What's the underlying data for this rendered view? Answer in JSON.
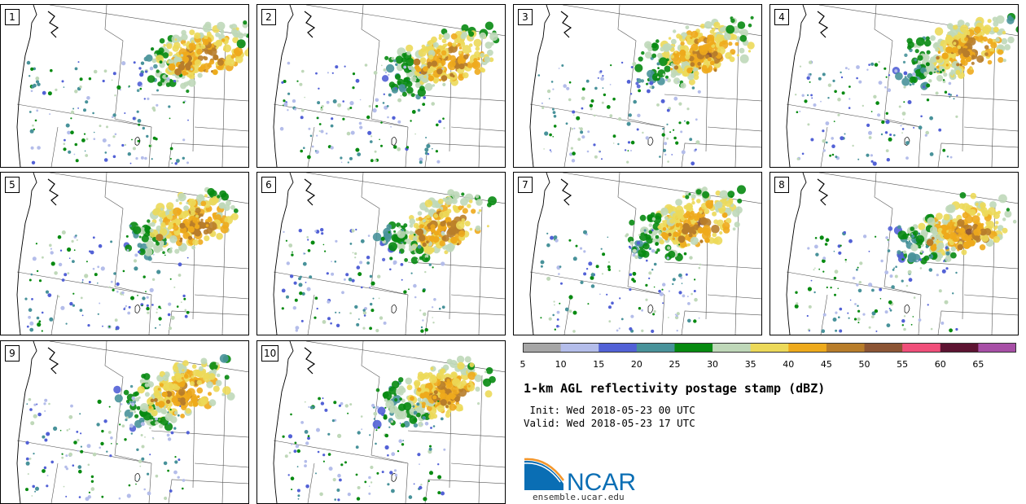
{
  "panels": [
    {
      "label": "1",
      "seed": 11,
      "core": [
        0.74,
        0.42
      ],
      "spread": 0.58
    },
    {
      "label": "2",
      "seed": 22,
      "core": [
        0.7,
        0.45
      ],
      "spread": 0.55
    },
    {
      "label": "3",
      "seed": 33,
      "core": [
        0.68,
        0.4
      ],
      "spread": 0.6
    },
    {
      "label": "4",
      "seed": 44,
      "core": [
        0.72,
        0.38
      ],
      "spread": 0.62
    },
    {
      "label": "5",
      "seed": 55,
      "core": [
        0.7,
        0.42
      ],
      "spread": 0.58
    },
    {
      "label": "6",
      "seed": 66,
      "core": [
        0.68,
        0.44
      ],
      "spread": 0.56
    },
    {
      "label": "7",
      "seed": 77,
      "core": [
        0.66,
        0.42
      ],
      "spread": 0.58
    },
    {
      "label": "8",
      "seed": 88,
      "core": [
        0.7,
        0.46
      ],
      "spread": 0.6
    },
    {
      "label": "9",
      "seed": 99,
      "core": [
        0.66,
        0.42
      ],
      "spread": 0.57
    },
    {
      "label": "10",
      "seed": 110,
      "core": [
        0.68,
        0.42
      ],
      "spread": 0.57
    }
  ],
  "colorbar": {
    "colors": [
      "#a6a6a6",
      "#b4bdea",
      "#5261d6",
      "#48929a",
      "#078a11",
      "#bfd8b9",
      "#ecd959",
      "#eeaa1c",
      "#b87d2a",
      "#8c5535",
      "#f04f7a",
      "#5d1432",
      "#a74fa6"
    ],
    "ticks": [
      "5",
      "10",
      "15",
      "20",
      "25",
      "30",
      "35",
      "40",
      "45",
      "50",
      "55",
      "60",
      "65"
    ]
  },
  "title": "1-km AGL reflectivity postage stamp (dBZ)",
  "init": " Init: Wed 2018-05-23 00 UTC",
  "valid": "Valid: Wed 2018-05-23 17 UTC",
  "logo": {
    "text": "NCAR",
    "url": "ensemble.ucar.edu",
    "blue": "#0a6eb4",
    "orange": "#f3962b"
  }
}
